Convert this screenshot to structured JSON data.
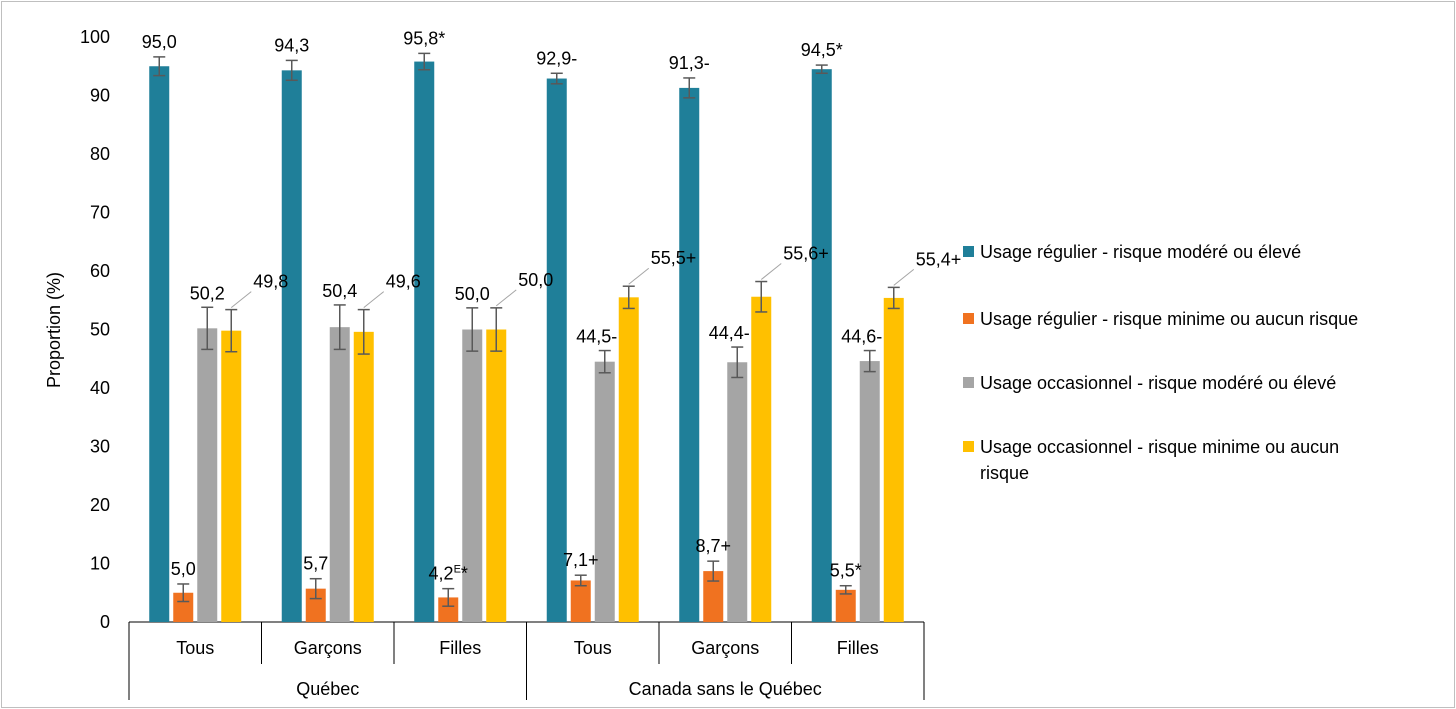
{
  "chart_data": {
    "type": "bar",
    "ylabel": "Proportion (%)",
    "ylim": [
      0,
      100
    ],
    "yticks": [
      0,
      10,
      20,
      30,
      40,
      50,
      60,
      70,
      80,
      90,
      100
    ],
    "grid": false,
    "legend_position": "right",
    "groups": [
      {
        "name": "Québec",
        "categories": [
          "Tous",
          "Garçons",
          "Filles"
        ]
      },
      {
        "name": "Canada sans le Québec",
        "categories": [
          "Tous",
          "Garçons",
          "Filles"
        ]
      }
    ],
    "series": [
      {
        "name": "Usage régulier - risque modéré ou élevé",
        "color": "#1f7f99",
        "values": [
          95.0,
          94.3,
          95.8,
          92.9,
          91.3,
          94.5
        ],
        "error": [
          [
            93.4,
            96.6
          ],
          [
            92.6,
            96.0
          ],
          [
            94.4,
            97.2
          ],
          [
            92.0,
            93.8
          ],
          [
            89.6,
            93.0
          ],
          [
            93.8,
            95.2
          ]
        ],
        "labels": [
          "95,0",
          "94,3",
          "95,8*",
          "92,9-",
          "91,3-",
          "94,5*"
        ]
      },
      {
        "name": "Usage régulier - risque minime ou aucun risque",
        "color": "#f07220",
        "values": [
          5.0,
          5.7,
          4.2,
          7.1,
          8.7,
          5.5
        ],
        "error": [
          [
            3.5,
            6.5
          ],
          [
            4.0,
            7.4
          ],
          [
            2.7,
            5.7
          ],
          [
            6.2,
            8.0
          ],
          [
            7.0,
            10.4
          ],
          [
            4.8,
            6.2
          ]
        ],
        "labels": [
          "5,0",
          "5,7",
          "4,2E*",
          "7,1+",
          "8,7+",
          "5,5*"
        ]
      },
      {
        "name": "Usage occasionnel - risque modéré ou élevé",
        "color": "#a5a5a5",
        "values": [
          50.2,
          50.4,
          50.0,
          44.5,
          44.4,
          44.6
        ],
        "error": [
          [
            46.6,
            53.8
          ],
          [
            46.6,
            54.2
          ],
          [
            46.3,
            53.7
          ],
          [
            42.6,
            46.4
          ],
          [
            41.8,
            47.0
          ],
          [
            42.8,
            46.4
          ]
        ],
        "labels": [
          "50,2",
          "50,4",
          "50,0",
          "44,5-",
          "44,4-",
          "44,6-"
        ]
      },
      {
        "name": "Usage occasionnel - risque minime ou aucun risque",
        "color": "#ffc000",
        "values": [
          49.8,
          49.6,
          50.0,
          55.5,
          55.6,
          55.4
        ],
        "error": [
          [
            46.2,
            53.4
          ],
          [
            45.8,
            53.4
          ],
          [
            46.3,
            53.7
          ],
          [
            53.6,
            57.4
          ],
          [
            53.0,
            58.2
          ],
          [
            53.6,
            57.2
          ]
        ],
        "labels": [
          "49,8",
          "49,6",
          "50,0",
          "55,5+",
          "55,6+",
          "55,4+"
        ]
      }
    ]
  },
  "legend": [
    {
      "label": "Usage régulier - risque modéré ou élevé",
      "color": "#1f7f99"
    },
    {
      "label": "Usage régulier - risque minime ou aucun risque",
      "color": "#f07220"
    },
    {
      "label": "Usage occasionnel - risque modéré ou élevé",
      "color": "#a5a5a5"
    },
    {
      "label_line1": "Usage occasionnel - risque minime ou aucun",
      "label_line2": "risque",
      "color": "#ffc000"
    }
  ]
}
